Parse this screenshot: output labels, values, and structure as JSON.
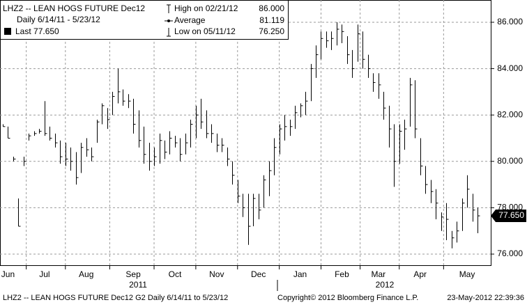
{
  "chart_data": {
    "type": "ohlc",
    "legend": {
      "title": "LHZ2 -- LEAN HOGS FUTURE  Dec12",
      "period": "Daily 6/14/11 - 5/23/12",
      "last": "Last 77.650",
      "high_label": "High on 02/21/12",
      "high_value": "86.000",
      "avg_label": "Average",
      "avg_value": "81.119",
      "low_label": "Low on 05/11/12",
      "low_value": "76.250"
    },
    "last": {
      "value": 77.65,
      "label": "77.650"
    },
    "ylim": [
      75.52,
      86.96
    ],
    "yticks": [
      {
        "value": 76,
        "label": "76.000"
      },
      {
        "value": 78,
        "label": "78.000"
      },
      {
        "value": 80,
        "label": "80.000"
      },
      {
        "value": 82,
        "label": "82.000"
      },
      {
        "value": 84,
        "label": "84.000"
      },
      {
        "value": 86,
        "label": "86.000"
      }
    ],
    "grid": true,
    "color": "#000000",
    "categories": [
      null,
      "Jun",
      null,
      null,
      null,
      null,
      null,
      null,
      "Jul",
      null,
      null,
      null,
      null,
      null,
      null,
      null,
      "Aug",
      null,
      null,
      null,
      null,
      null,
      null,
      null,
      null,
      "Sep",
      null,
      null,
      null,
      null,
      null,
      null,
      null,
      "Oct",
      null,
      null,
      null,
      null,
      null,
      null,
      null,
      "Nov",
      null,
      null,
      null,
      null,
      null,
      null,
      null,
      "Dec",
      null,
      null,
      null,
      null,
      null,
      null,
      null,
      "Jan",
      null,
      null,
      null,
      null,
      null,
      null,
      null,
      "Feb",
      null,
      null,
      null,
      null,
      null,
      null,
      "Mar",
      null,
      null,
      null,
      null,
      null,
      null,
      null,
      "Apr",
      null,
      null,
      null,
      null,
      null,
      null,
      null,
      null,
      "May",
      null,
      null
    ],
    "years": [
      "2011",
      "2012"
    ],
    "series": [
      {
        "name": "Last",
        "high": [
          81.6,
          81.5,
          80.2,
          78.4,
          80.2,
          81.2,
          81.3,
          81.4,
          82.6,
          81.5,
          81.2,
          80.9,
          80.8,
          80.6,
          80.4,
          80.8,
          81.0,
          80.6,
          81.8,
          82.5,
          82.3,
          83.0,
          84.0,
          83.1,
          82.9,
          82.7,
          82.2,
          81.5,
          80.8,
          80.6,
          81.2,
          80.9,
          81.3,
          81.1,
          81.0,
          81.2,
          81.8,
          82.4,
          82.7,
          82.2,
          81.6,
          81.2,
          81.0,
          80.6,
          80.0,
          79.2,
          78.6,
          78.6,
          78.6,
          78.6,
          79.4,
          80.0,
          81.0,
          81.6,
          82.0,
          81.8,
          82.4,
          82.5,
          83.0,
          84.2,
          85.0,
          85.6,
          85.6,
          85.6,
          86.0,
          85.9,
          85.4,
          84.8,
          85.9,
          85.6,
          84.6,
          83.8,
          83.8,
          83.0,
          82.4,
          81.6,
          81.6,
          81.8,
          83.6,
          83.5,
          81.0,
          79.8,
          79.2,
          78.8,
          77.8,
          78.2,
          77.0,
          77.4,
          78.4,
          79.4,
          78.6,
          78.0
        ],
        "low": [
          81.5,
          81.0,
          80.0,
          77.2,
          79.8,
          80.9,
          81.1,
          81.2,
          81.1,
          80.9,
          80.6,
          79.9,
          79.8,
          79.6,
          79.0,
          79.5,
          80.2,
          80.0,
          80.8,
          81.6,
          81.4,
          82.0,
          82.5,
          82.4,
          82.3,
          81.2,
          80.6,
          79.9,
          79.6,
          79.8,
          79.9,
          80.1,
          80.3,
          80.6,
          80.0,
          80.3,
          80.6,
          81.0,
          81.4,
          81.0,
          80.8,
          80.4,
          80.4,
          79.8,
          79.0,
          78.2,
          77.6,
          76.4,
          77.2,
          77.5,
          78.0,
          78.5,
          79.4,
          80.3,
          80.9,
          81.1,
          81.4,
          81.9,
          82.0,
          82.6,
          83.6,
          84.4,
          84.9,
          84.8,
          85.0,
          85.1,
          84.2,
          83.6,
          84.3,
          84.0,
          83.6,
          83.0,
          82.7,
          81.8,
          80.6,
          78.9,
          79.9,
          80.5,
          81.5,
          81.0,
          79.4,
          78.6,
          78.2,
          77.5,
          77.0,
          76.6,
          76.25,
          76.5,
          77.0,
          78.0,
          77.4,
          76.9
        ],
        "close": [
          81.5,
          81.0,
          80.1,
          77.2,
          80.0,
          81.1,
          81.2,
          81.3,
          81.2,
          81.0,
          80.8,
          80.2,
          80.1,
          80.0,
          79.3,
          80.6,
          80.5,
          80.2,
          81.7,
          82.4,
          81.8,
          82.8,
          83.0,
          82.6,
          82.6,
          81.6,
          80.9,
          80.3,
          80.0,
          80.2,
          80.9,
          80.4,
          81.0,
          80.8,
          80.3,
          80.8,
          81.6,
          82.0,
          81.7,
          81.2,
          81.2,
          80.7,
          80.7,
          80.1,
          79.4,
          78.5,
          78.0,
          77.2,
          78.4,
          77.9,
          79.2,
          79.6,
          80.6,
          81.4,
          81.5,
          81.5,
          82.1,
          82.4,
          82.6,
          84.0,
          84.6,
          85.3,
          85.2,
          85.3,
          85.7,
          85.6,
          84.6,
          84.0,
          85.5,
          84.4,
          84.0,
          83.4,
          83.3,
          82.3,
          81.4,
          80.0,
          81.3,
          81.4,
          83.3,
          81.4,
          79.8,
          79.0,
          78.7,
          78.2,
          77.6,
          77.5,
          76.7,
          77.0,
          78.2,
          78.8,
          77.9,
          77.65
        ]
      }
    ]
  },
  "footer": {
    "left": "LHZ2 -- LEAN HOGS FUTURE  Dec12    G2   Daily  6/14/11 to 5/23/12",
    "copyright": "Copyright© 2012 Bloomberg Finance L.P.",
    "timestamp": "23-May-2012 22:39:36"
  }
}
